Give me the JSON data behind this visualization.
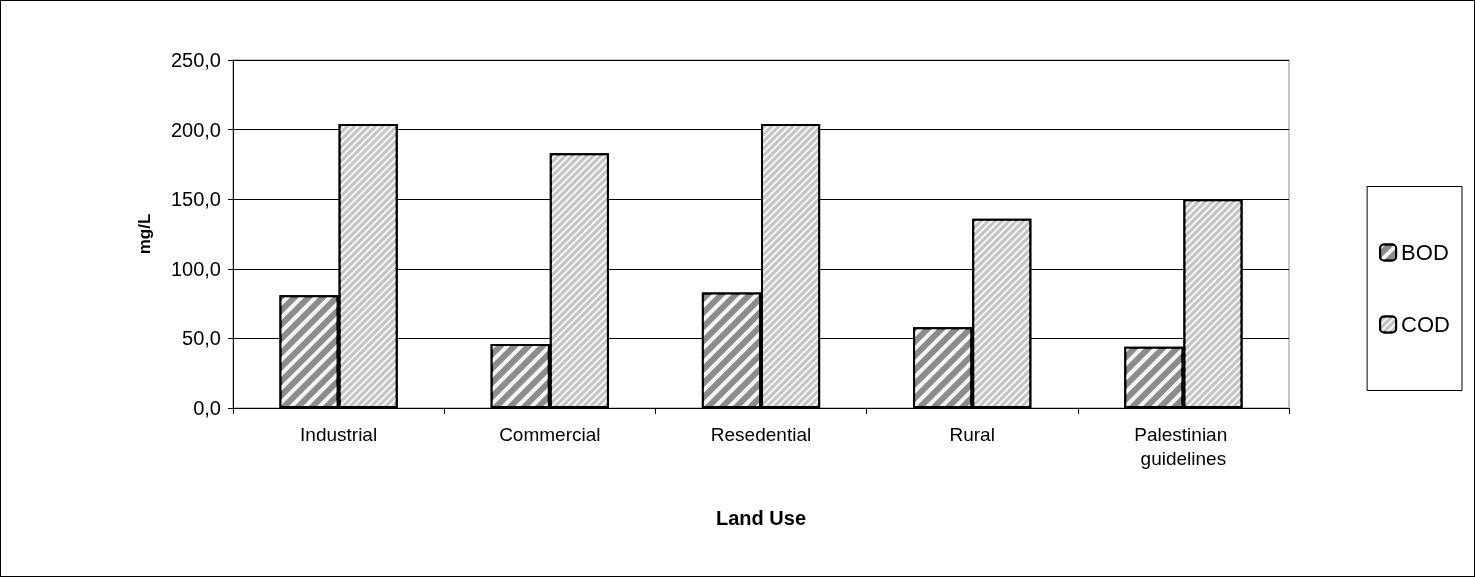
{
  "chart_data": {
    "type": "bar",
    "xlabel": "Land Use",
    "ylabel": "mg/L",
    "categories": [
      "Industrial",
      "Commercial",
      "Resedential",
      "Rural",
      "Palestinian guidelines"
    ],
    "series": [
      {
        "name": "BOD",
        "color": "#8c8c8c",
        "values": [
          81,
          46,
          83,
          58,
          44
        ]
      },
      {
        "name": "COD",
        "color": "#c4c4c4",
        "values": [
          204,
          183,
          204,
          136,
          150
        ]
      }
    ],
    "ylim": [
      0,
      250
    ],
    "yticks": [
      {
        "value": 0,
        "label": "0,0"
      },
      {
        "value": 50,
        "label": "50,0"
      },
      {
        "value": 100,
        "label": "100,0"
      },
      {
        "value": 150,
        "label": "150,0"
      },
      {
        "value": 200,
        "label": "200,0"
      },
      {
        "value": 250,
        "label": "250,0"
      }
    ],
    "grid": "y",
    "legend": "right"
  }
}
